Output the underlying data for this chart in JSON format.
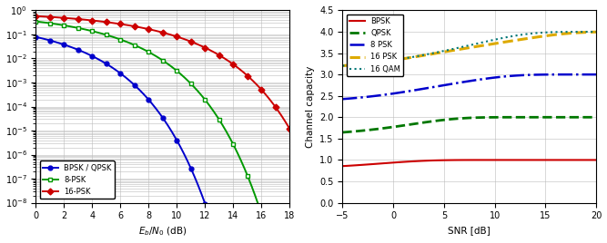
{
  "left": {
    "xlabel": "E_b/N_0 (dB)",
    "xlim": [
      0,
      18
    ],
    "legend": [
      "BPSK / QPSK",
      "8-PSK",
      "16-PSK"
    ],
    "colors": [
      "#0000cc",
      "#009900",
      "#cc0000"
    ],
    "markers": [
      "o",
      "s",
      "D"
    ],
    "marker_every": 1
  },
  "right": {
    "xlabel": "SNR [dB]",
    "ylabel": "Channel capacity",
    "xlim": [
      -5,
      20
    ],
    "ylim": [
      0,
      4.5
    ],
    "legend": [
      "BPSK",
      "QPSK",
      "8 PSK",
      "16 PSK",
      "16 QAM"
    ],
    "colors": [
      "#cc0000",
      "#007700",
      "#0000cc",
      "#ddaa00",
      "#007777"
    ],
    "linestyles": [
      "-",
      "--",
      "-.",
      "--",
      ":"
    ],
    "linewidths": [
      1.5,
      2.0,
      1.8,
      2.2,
      1.5
    ]
  }
}
